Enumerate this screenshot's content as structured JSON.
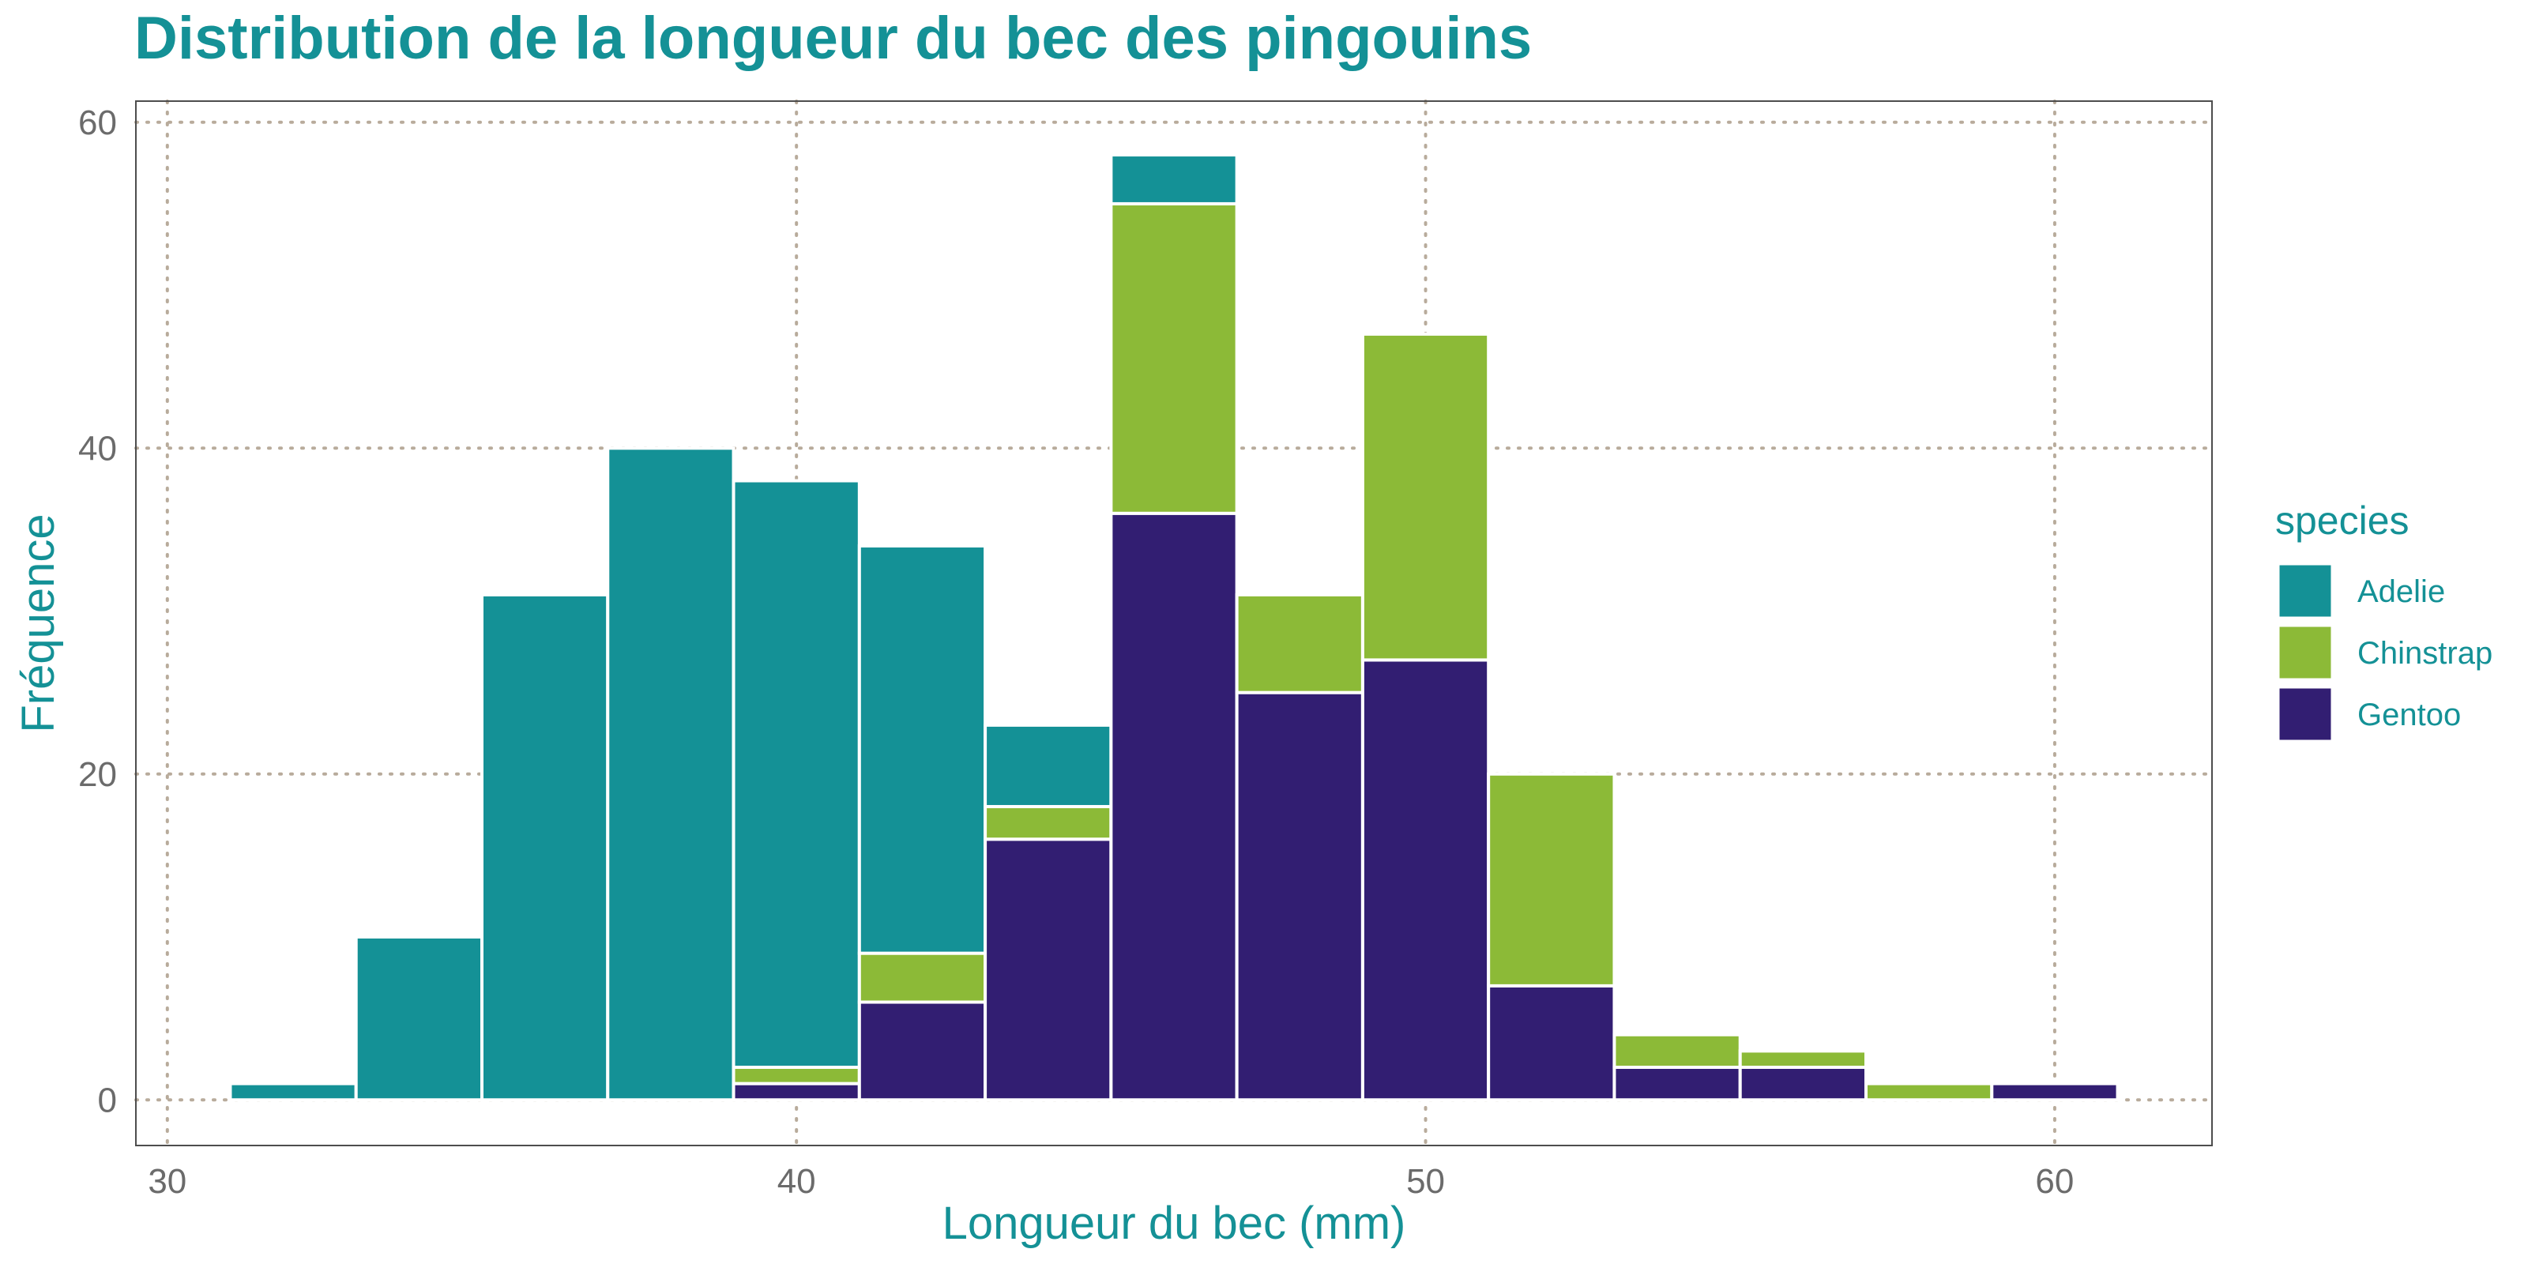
{
  "colors": {
    "accent": "#149196",
    "tick_text": "#6b6b6b",
    "grid": "#b8ab9b",
    "panel_border": "#4d4d4d",
    "bar_outline": "#ffffff"
  },
  "chart_data": {
    "type": "bar",
    "stacked": true,
    "title": "Distribution de la longueur du bec des pingouins",
    "xlabel": "Longueur du bec (mm)",
    "ylabel": "Fréquence",
    "xlim": [
      31,
      61
    ],
    "ylim": [
      0,
      60
    ],
    "xticks": [
      30,
      40,
      50,
      60
    ],
    "yticks": [
      0,
      20,
      40,
      60
    ],
    "bin_width": 2,
    "bin_starts": [
      31,
      33,
      35,
      37,
      39,
      41,
      43,
      45,
      47,
      49,
      51,
      53,
      55,
      57,
      59
    ],
    "stack_order": [
      "Gentoo",
      "Chinstrap",
      "Adelie"
    ],
    "series": [
      {
        "name": "Adelie",
        "color": "#149196",
        "values": [
          1,
          10,
          31,
          40,
          36,
          25,
          5,
          3,
          0,
          0,
          0,
          0,
          0,
          0,
          0
        ]
      },
      {
        "name": "Chinstrap",
        "color": "#8cba37",
        "values": [
          0,
          0,
          0,
          0,
          1,
          3,
          2,
          19,
          6,
          20,
          13,
          2,
          1,
          1,
          0
        ]
      },
      {
        "name": "Gentoo",
        "color": "#321e72",
        "values": [
          0,
          0,
          0,
          0,
          1,
          6,
          16,
          36,
          25,
          27,
          7,
          2,
          2,
          0,
          1
        ]
      }
    ],
    "grid": true,
    "grid_style": "dotted",
    "legend": {
      "title": "species",
      "position": "right",
      "entries": [
        "Adelie",
        "Chinstrap",
        "Gentoo"
      ]
    }
  }
}
